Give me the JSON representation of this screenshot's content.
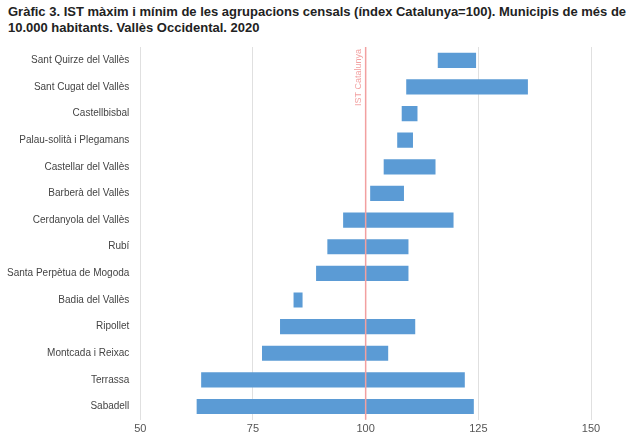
{
  "chart_data": {
    "type": "bar",
    "title": "Gràfic 3.  IST màxim i mínim de les agrupacions censals (índex Catalunya=100). Municipis de més de 10.000 habitants. Vallès Occidental. 2020",
    "orientation": "horizontal",
    "categories": [
      "Sant Quirze del Vallès",
      "Sant Cugat del Vallès",
      "Castellbisbal",
      "Palau-solità i Plegamans",
      "Castellar del Vallès",
      "Barberà del Vallès",
      "Cerdanyola del Vallès",
      "Rubí",
      "Santa Perpètua de Mogoda",
      "Badia del Vallès",
      "Ripollet",
      "Montcada i Reixac",
      "Terrassa",
      "Sabadell"
    ],
    "values": [
      [
        116,
        124.5
      ],
      [
        109,
        136
      ],
      [
        108,
        111.5
      ],
      [
        107,
        110.5
      ],
      [
        104,
        115.5
      ],
      [
        101,
        108.5
      ],
      [
        95,
        119.5
      ],
      [
        91.5,
        109.5
      ],
      [
        89,
        109.5
      ],
      [
        84,
        86
      ],
      [
        81,
        111
      ],
      [
        77,
        105
      ],
      [
        63.5,
        122
      ],
      [
        62.5,
        124
      ]
    ],
    "color": "#5b9bd5",
    "xlim": [
      50,
      150
    ],
    "xticks": [
      50,
      75,
      100,
      125,
      150
    ],
    "grid": true,
    "annotations": [
      {
        "value": 100,
        "label": "IST Catalunya",
        "color": "#f2a0a0"
      }
    ]
  }
}
